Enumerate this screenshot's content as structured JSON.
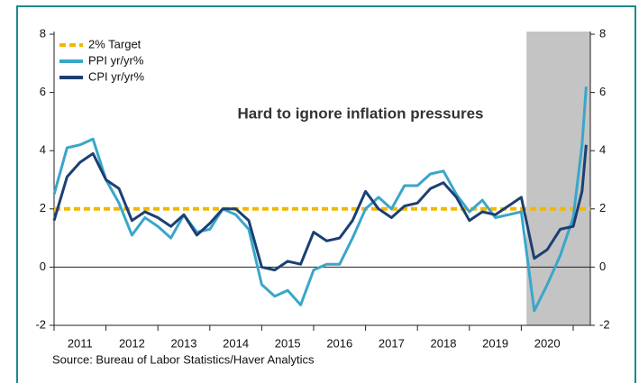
{
  "chart_data": {
    "type": "line",
    "annotation": "Hard to ignore inflation pressures",
    "source": "Source:  Bureau of Labor Statistics/Haver Analytics",
    "x": [
      2011.0,
      2011.25,
      2011.5,
      2011.75,
      2012.0,
      2012.25,
      2012.5,
      2012.75,
      2013.0,
      2013.25,
      2013.5,
      2013.75,
      2014.0,
      2014.25,
      2014.5,
      2014.75,
      2015.0,
      2015.25,
      2015.5,
      2015.75,
      2016.0,
      2016.25,
      2016.5,
      2016.75,
      2017.0,
      2017.25,
      2017.5,
      2017.75,
      2018.0,
      2018.25,
      2018.5,
      2018.75,
      2019.0,
      2019.25,
      2019.5,
      2019.75,
      2020.0,
      2020.25,
      2020.5,
      2020.75,
      2021.0,
      2021.17,
      2021.25
    ],
    "xlim": [
      2011,
      2021.33
    ],
    "xticks": [
      2011,
      2012,
      2013,
      2014,
      2015,
      2016,
      2017,
      2018,
      2019,
      2020,
      2021
    ],
    "year_labels": [
      "2011",
      "2012",
      "2013",
      "2014",
      "2015",
      "2016",
      "2017",
      "2018",
      "2019",
      "2020"
    ],
    "target": {
      "name": "2% Target",
      "value": 2,
      "color": "#f2b800"
    },
    "series": [
      {
        "name": "PPI yr/yr%",
        "color": "#3aa6c9",
        "values": [
          2.5,
          4.1,
          4.2,
          4.4,
          3.0,
          2.2,
          1.1,
          1.7,
          1.4,
          1.0,
          1.8,
          1.2,
          1.3,
          2.0,
          1.8,
          1.3,
          -0.6,
          -1.0,
          -0.8,
          -1.3,
          -0.1,
          0.1,
          0.1,
          1.0,
          2.0,
          2.4,
          2.0,
          2.8,
          2.8,
          3.2,
          3.3,
          2.5,
          1.9,
          2.3,
          1.7,
          1.8,
          1.9,
          -1.5,
          -0.6,
          0.4,
          1.7,
          4.2,
          6.2
        ]
      },
      {
        "name": "CPI yr/yr%",
        "color": "#1c3f73",
        "values": [
          1.6,
          3.1,
          3.6,
          3.9,
          3.0,
          2.7,
          1.6,
          1.9,
          1.7,
          1.4,
          1.8,
          1.1,
          1.5,
          2.0,
          2.0,
          1.6,
          0.0,
          -0.1,
          0.2,
          0.1,
          1.2,
          0.9,
          1.0,
          1.6,
          2.6,
          2.0,
          1.7,
          2.1,
          2.2,
          2.7,
          2.9,
          2.4,
          1.6,
          1.9,
          1.8,
          2.1,
          2.4,
          0.3,
          0.6,
          1.3,
          1.4,
          2.6,
          4.2
        ]
      }
    ],
    "shade": [
      2020.1,
      2021.33
    ],
    "ylim": [
      -2,
      8
    ],
    "yticks": [
      -2,
      0,
      2,
      4,
      6,
      8
    ],
    "y2lim": [
      -2,
      8
    ],
    "y2ticks": [
      -2,
      0,
      2,
      4,
      6,
      8
    ]
  }
}
